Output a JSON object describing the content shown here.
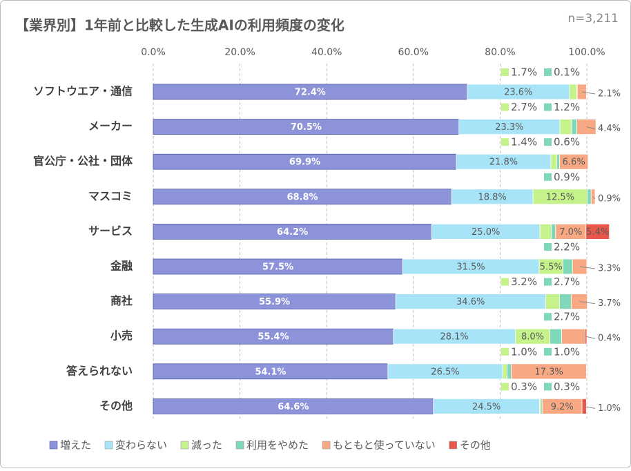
{
  "chart_data": {
    "type": "stacked-bar-horizontal",
    "title": "【業界別】1年前と比較した生成AIの利用頻度の変化",
    "note": "n=3,211",
    "categories": [
      "ソフトウエア・通信",
      "メーカー",
      "官公庁・公社・団体",
      "マスコミ",
      "サービス",
      "金融",
      "商社",
      "小売",
      "答えられない",
      "その他"
    ],
    "series": [
      {
        "name": "増えた",
        "color": "#8c93d8",
        "values": [
          72.4,
          70.5,
          69.9,
          68.8,
          64.2,
          57.5,
          55.9,
          55.4,
          54.1,
          64.6
        ],
        "value_labels": [
          "72.4%",
          "70.5%",
          "69.9%",
          "68.8%",
          "64.2%",
          "57.5%",
          "55.9%",
          "55.4%",
          "54.1%",
          "64.6%"
        ]
      },
      {
        "name": "変わらない",
        "color": "#a8e4f8",
        "values": [
          23.6,
          23.3,
          21.8,
          18.8,
          25.0,
          31.5,
          34.6,
          28.1,
          26.5,
          24.5
        ],
        "value_labels": [
          "23.6%",
          "23.3%",
          "21.8%",
          "18.8%",
          "25.0%",
          "31.5%",
          "34.6%",
          "28.1%",
          "26.5%",
          "24.5%"
        ]
      },
      {
        "name": "減った",
        "color": "#c5f28a",
        "values": [
          1.7,
          2.7,
          1.4,
          12.5,
          2.6,
          5.5,
          3.2,
          8.0,
          1.0,
          0.3
        ],
        "value_labels": [
          "1.7%",
          "2.7%",
          "1.4%",
          "12.5%",
          null,
          "5.5%",
          "3.2%",
          "8.0%",
          "1.0%",
          "0.3%"
        ]
      },
      {
        "name": "利用をやめた",
        "color": "#7fd9b8",
        "values": [
          0.1,
          1.2,
          0.6,
          0.9,
          1.0,
          2.2,
          2.7,
          2.7,
          1.0,
          0.3
        ],
        "value_labels": [
          "0.1%",
          "1.2%",
          "0.6%",
          "0.9%",
          null,
          "2.2%",
          "2.7%",
          "2.7%",
          "1.0%",
          "0.3%"
        ]
      },
      {
        "name": "もともと使っていない",
        "color": "#f8a883",
        "values": [
          2.1,
          4.4,
          6.6,
          0.9,
          7.0,
          3.3,
          3.7,
          5.4,
          17.3,
          9.2
        ],
        "value_labels": [
          "2.1%",
          "4.4%",
          "6.6%",
          "0.9%",
          "7.0%",
          "3.3%",
          "3.7%",
          null,
          "17.3%",
          "9.2%"
        ]
      },
      {
        "name": "その他",
        "color": "#e8574a",
        "values": [
          null,
          null,
          null,
          null,
          5.4,
          null,
          null,
          0.4,
          null,
          1.0
        ],
        "value_labels": [
          null,
          null,
          null,
          null,
          "5.4%",
          null,
          null,
          "0.4%",
          null,
          "1.0%"
        ]
      }
    ],
    "xlim": [
      0,
      100
    ],
    "xticks": [
      {
        "value": 0,
        "label": "0.0%"
      },
      {
        "value": 20,
        "label": "20.0%"
      },
      {
        "value": 40,
        "label": "40.0%"
      },
      {
        "value": 60,
        "label": "60.0%"
      },
      {
        "value": 80,
        "label": "80.0%"
      },
      {
        "value": 100,
        "label": "100.0%"
      }
    ],
    "grid": true
  }
}
